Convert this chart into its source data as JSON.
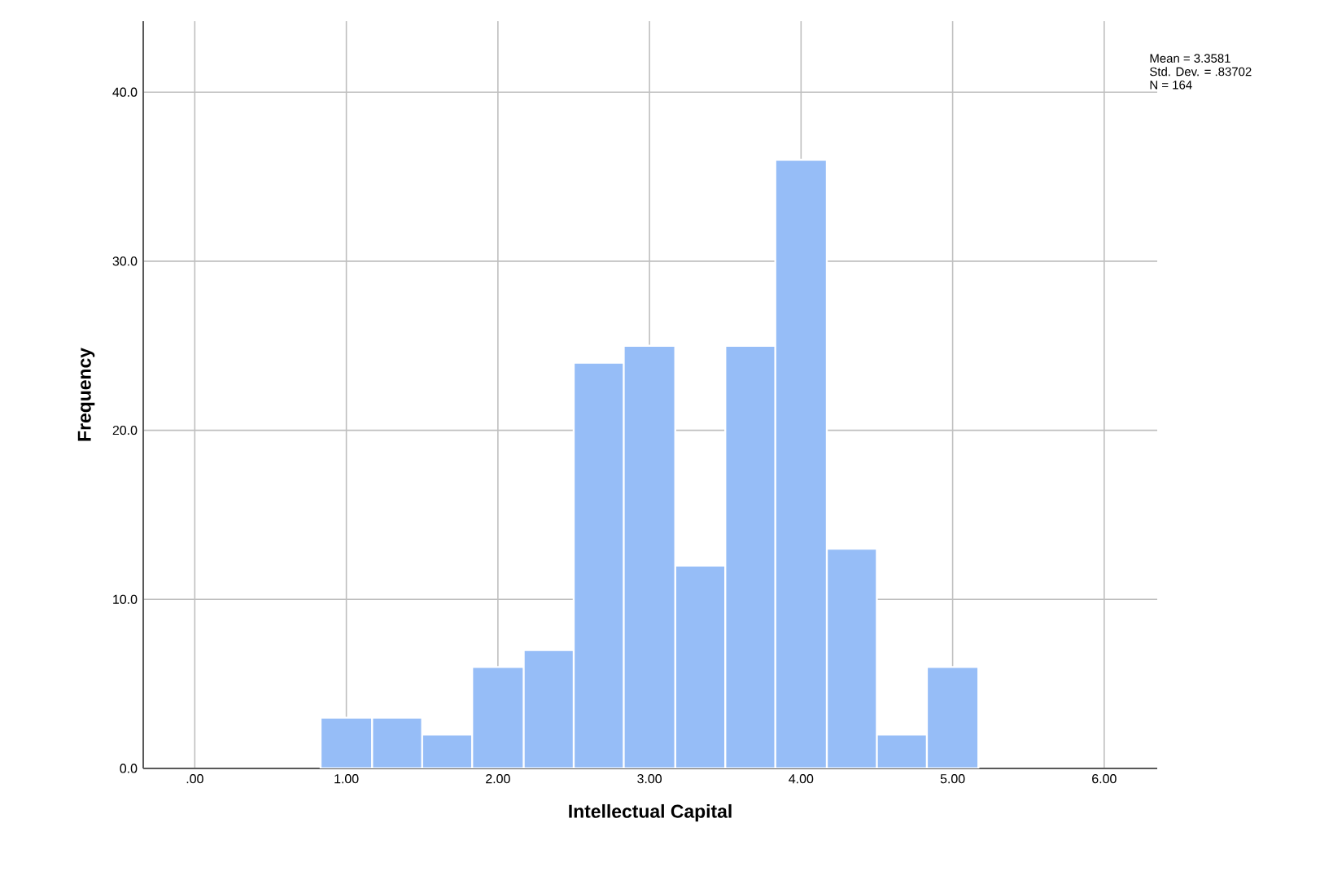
{
  "chart_data": {
    "type": "histogram",
    "xlabel": "Intellectual Capital",
    "ylabel": "Frequency",
    "bins": [
      0.83,
      1.17,
      1.5,
      1.83,
      2.17,
      2.5,
      2.83,
      3.17,
      3.5,
      3.83,
      4.17,
      4.5,
      4.83,
      5.17
    ],
    "values": [
      3,
      3,
      2,
      6,
      7,
      24,
      25,
      12,
      25,
      36,
      13,
      2,
      6
    ],
    "color": "#96bdf7",
    "xlim": [
      -0.34,
      6.35
    ],
    "ylim": [
      0,
      44.2
    ],
    "xticks": [
      {
        "value": 0,
        "label": ".00"
      },
      {
        "value": 1,
        "label": "1.00"
      },
      {
        "value": 2,
        "label": "2.00"
      },
      {
        "value": 3,
        "label": "3.00"
      },
      {
        "value": 4,
        "label": "4.00"
      },
      {
        "value": 5,
        "label": "5.00"
      },
      {
        "value": 6,
        "label": "6.00"
      }
    ],
    "yticks": [
      {
        "value": 0,
        "label": "0.0"
      },
      {
        "value": 10,
        "label": "10.0"
      },
      {
        "value": 20,
        "label": "20.0"
      },
      {
        "value": 30,
        "label": "30.0"
      },
      {
        "value": 40,
        "label": "40.0"
      }
    ],
    "grid": true,
    "annotations": [
      "Mean = 3.3581",
      "Std. Dev. = .83702",
      "N = 164"
    ]
  }
}
